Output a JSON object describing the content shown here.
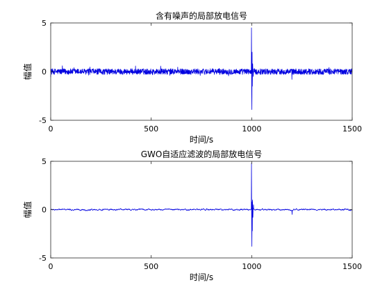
{
  "figure": {
    "colors": {
      "trace": "#0000e0",
      "axes": "#262626",
      "background": "#ffffff"
    }
  },
  "chart_data": [
    {
      "type": "line",
      "title": "含有噪声的局部放电信号",
      "xlabel": "时间/s",
      "ylabel": "幅值",
      "xlim": [
        0,
        1500
      ],
      "ylim": [
        -5,
        5
      ],
      "xticks": [
        "0",
        "500",
        "1000",
        "1500"
      ],
      "yticks": [
        "-5",
        "0",
        "5"
      ],
      "grid": false,
      "legend": "none",
      "signal": {
        "noise_amplitude": 0.3,
        "features": [
          {
            "x": 999,
            "y": 4.5
          },
          {
            "x": 1000,
            "y": -2.1
          },
          {
            "x": 1001,
            "y": -3.9
          },
          {
            "x": 1002,
            "y": 2.0
          },
          {
            "x": 1003,
            "y": -1.5
          },
          {
            "x": 1005,
            "y": 0.8
          },
          {
            "x": 1008,
            "y": -0.5
          },
          {
            "x": 1200,
            "y": -0.8
          }
        ]
      }
    },
    {
      "type": "line",
      "title": "GWO自适应滤波的局部放电信号",
      "xlabel": "时间/s",
      "ylabel": "幅值",
      "xlim": [
        0,
        1500
      ],
      "ylim": [
        -5,
        5
      ],
      "xticks": [
        "0",
        "500",
        "1000",
        "1500"
      ],
      "yticks": [
        "-5",
        "0",
        "5"
      ],
      "grid": false,
      "legend": "none",
      "signal": {
        "noise_amplitude": 0.08,
        "features": [
          {
            "x": 999,
            "y": 4.8
          },
          {
            "x": 1000,
            "y": -1.5
          },
          {
            "x": 1001,
            "y": -3.8
          },
          {
            "x": 1002,
            "y": 0.8
          },
          {
            "x": 1003,
            "y": -2.2
          },
          {
            "x": 1004,
            "y": 1.0
          },
          {
            "x": 1006,
            "y": -0.8
          },
          {
            "x": 1009,
            "y": 0.5
          },
          {
            "x": 1201,
            "y": -0.5
          }
        ]
      }
    }
  ]
}
